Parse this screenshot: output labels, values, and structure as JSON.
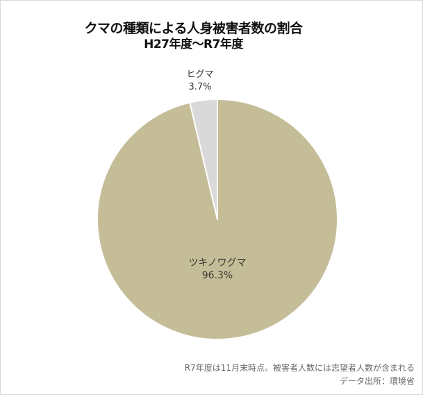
{
  "title": {
    "line1": "クマの種類による人身被害者数の割合",
    "line2": "H27年度～R7年度"
  },
  "labels": {
    "higuma_name": "ヒグマ",
    "higuma_pct": "3.7%",
    "tsukinowaguma_name": "ツキノワグマ",
    "tsukinowaguma_pct": "96.3%"
  },
  "footnote": {
    "line1": "R7年度は11月末時点。被害者人数には志望者人数が含まれる",
    "line2": "データ出所：環境省"
  },
  "colors": {
    "tsukinowaguma": "#c5bd98",
    "higuma": "#d9d9d9",
    "separator": "#ffffff",
    "border": "#d8d8d8"
  },
  "chart_data": {
    "type": "pie",
    "title": "クマの種類による人身被害者数の割合 H27年度～R7年度",
    "categories": [
      "ヒグマ",
      "ツキノワグマ"
    ],
    "values": [
      3.7,
      96.3
    ],
    "unit": "%",
    "start_angle": "12 o'clock, slices ordered counterclockwise starting with ヒグマ",
    "colors": [
      "#d9d9d9",
      "#c5bd98"
    ],
    "annotations": [
      "R7年度は11月末時点。被害者人数には志望者人数が含まれる",
      "データ出所：環境省"
    ],
    "legend": "none (labels placed on/near slices)"
  }
}
